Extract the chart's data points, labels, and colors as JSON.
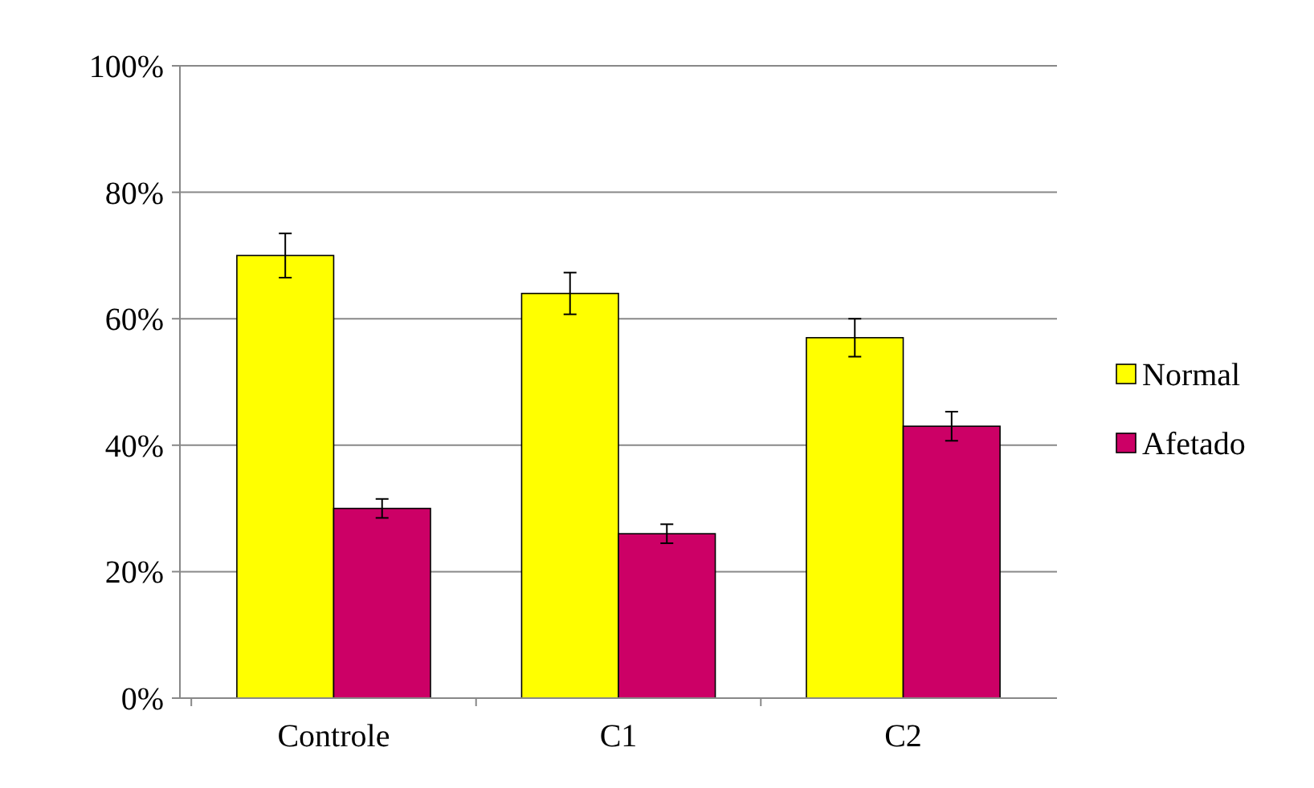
{
  "chart_data": {
    "type": "bar",
    "categories": [
      "Controle",
      "C1",
      "C2"
    ],
    "series": [
      {
        "name": "Normal",
        "color": "#ffff00",
        "values": [
          70,
          64,
          57
        ],
        "errors": [
          3.5,
          3.3,
          3
        ]
      },
      {
        "name": "Afetado",
        "color": "#cc0066",
        "values": [
          30,
          26,
          43
        ],
        "errors": [
          1.5,
          1.5,
          2.3
        ]
      }
    ],
    "ylim": [
      0,
      100
    ],
    "yticks": [
      {
        "value": 0,
        "label": "0%"
      },
      {
        "value": 20,
        "label": "20%"
      },
      {
        "value": 40,
        "label": "40%"
      },
      {
        "value": 60,
        "label": "60%"
      },
      {
        "value": 80,
        "label": "80%"
      },
      {
        "value": 100,
        "label": "100%"
      }
    ],
    "grid": "y",
    "legend": "right"
  }
}
